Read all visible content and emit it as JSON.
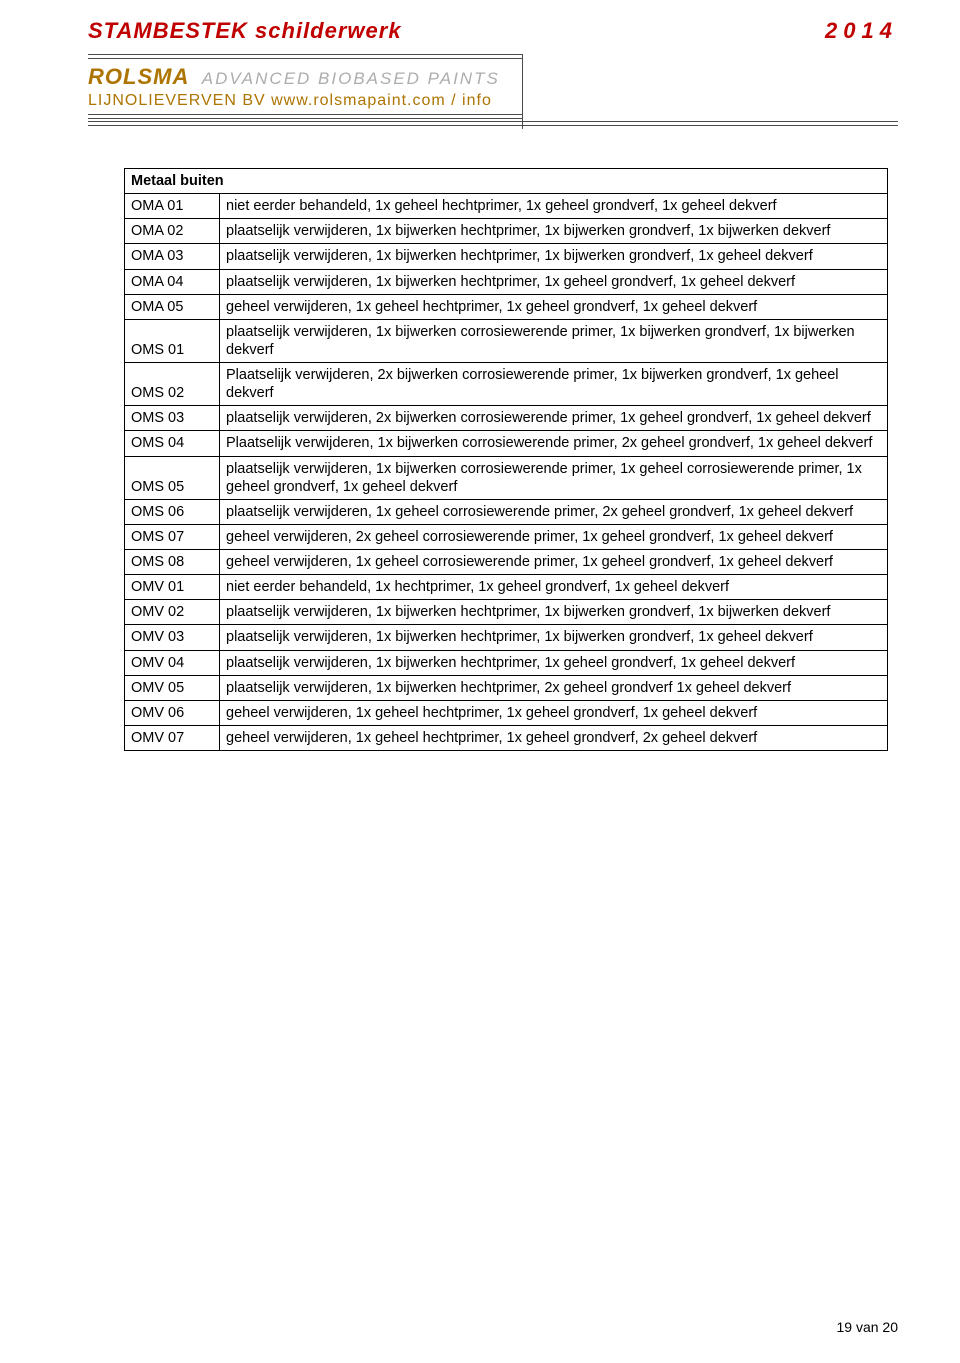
{
  "header": {
    "title": "STAMBESTEK schilderwerk",
    "year": "2014",
    "brand": "ROLSMA",
    "brand_sub": "ADVANCED BIOBASED PAINTS",
    "link": "LIJNOLIEVERVEN BV www.rolsmapaint.com / info"
  },
  "table": {
    "title": "Metaal buiten",
    "rows": [
      {
        "code": "OMA 01",
        "desc": "niet eerder behandeld, 1x geheel hechtprimer, 1x geheel grondverf, 1x geheel dekverf"
      },
      {
        "code": "OMA 02",
        "desc": "plaatselijk verwijderen, 1x bijwerken hechtprimer, 1x bijwerken grondverf, 1x bijwerken dekverf"
      },
      {
        "code": "OMA 03",
        "desc": "plaatselijk verwijderen, 1x bijwerken hechtprimer, 1x bijwerken grondverf, 1x geheel dekverf"
      },
      {
        "code": "OMA 04",
        "desc": "plaatselijk verwijderen, 1x bijwerken hechtprimer, 1x geheel grondverf, 1x geheel dekverf"
      },
      {
        "code": "OMA 05",
        "desc": "geheel verwijderen, 1x geheel hechtprimer, 1x geheel grondverf, 1x geheel dekverf"
      },
      {
        "code": "OMS 01",
        "desc": "plaatselijk verwijderen, 1x bijwerken corrosiewerende primer, 1x bijwerken grondverf, 1x bijwerken dekverf"
      },
      {
        "code": "OMS 02",
        "desc": "Plaatselijk verwijderen, 2x bijwerken corrosiewerende primer, 1x bijwerken grondverf, 1x geheel dekverf"
      },
      {
        "code": "OMS 03",
        "desc": "plaatselijk verwijderen, 2x bijwerken corrosiewerende primer, 1x geheel grondverf, 1x geheel dekverf"
      },
      {
        "code": "OMS 04",
        "desc": "Plaatselijk verwijderen, 1x bijwerken corrosiewerende primer, 2x geheel grondverf, 1x geheel dekverf"
      },
      {
        "code": "OMS 05",
        "desc": "plaatselijk verwijderen, 1x bijwerken corrosiewerende primer, 1x geheel corrosiewerende primer, 1x geheel grondverf, 1x geheel dekverf"
      },
      {
        "code": "OMS 06",
        "desc": "plaatselijk verwijderen, 1x geheel corrosiewerende primer, 2x geheel grondverf, 1x geheel dekverf"
      },
      {
        "code": "OMS 07",
        "desc": "geheel verwijderen, 2x geheel corrosiewerende primer, 1x geheel grondverf, 1x geheel dekverf"
      },
      {
        "code": "OMS 08",
        "desc": "geheel verwijderen, 1x geheel corrosiewerende primer, 1x geheel grondverf, 1x geheel dekverf"
      },
      {
        "code": "OMV 01",
        "desc": "niet eerder behandeld, 1x hechtprimer, 1x geheel grondverf, 1x geheel dekverf"
      },
      {
        "code": "OMV 02",
        "desc": "plaatselijk verwijderen, 1x bijwerken hechtprimer, 1x bijwerken grondverf, 1x bijwerken dekverf"
      },
      {
        "code": "OMV 03",
        "desc": "plaatselijk verwijderen, 1x bijwerken hechtprimer, 1x bijwerken grondverf, 1x geheel dekverf"
      },
      {
        "code": "OMV 04",
        "desc": "plaatselijk verwijderen, 1x bijwerken hechtprimer, 1x geheel grondverf, 1x geheel dekverf"
      },
      {
        "code": "OMV 05",
        "desc": "plaatselijk verwijderen, 1x bijwerken hechtprimer, 2x geheel grondverf 1x geheel dekverf"
      },
      {
        "code": "OMV 06",
        "desc": "geheel verwijderen, 1x geheel hechtprimer, 1x geheel grondverf, 1x geheel dekverf"
      },
      {
        "code": "OMV 07",
        "desc": "geheel verwijderen, 1x geheel hechtprimer, 1x geheel grondverf, 2x geheel dekverf"
      }
    ]
  },
  "footer": {
    "text": "19 van 20"
  },
  "colors": {
    "title": "#c00000",
    "brand": "#ad7400",
    "sub": "#adadad",
    "border": "#000000",
    "rule": "#4a4a4a"
  }
}
